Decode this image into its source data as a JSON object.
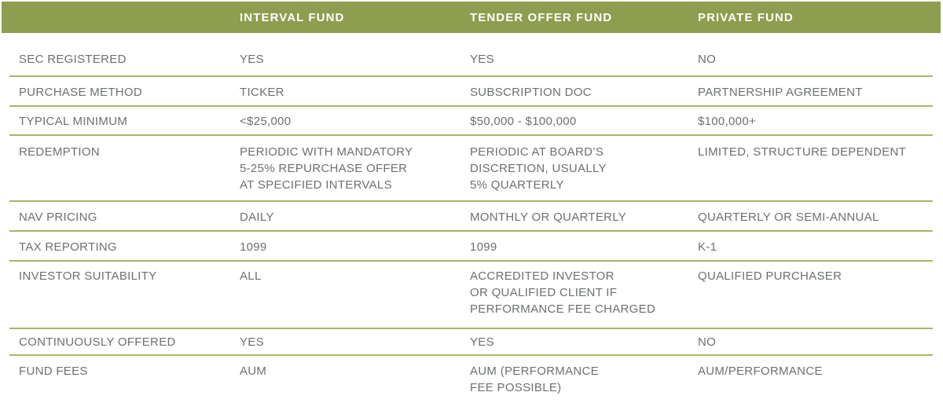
{
  "colors": {
    "header_bg": "#8E9D4F",
    "divider": "#A9B56B",
    "body_text": "#6C7073",
    "header_text": "#FFFFFF"
  },
  "table": {
    "headers": [
      "INTERVAL FUND",
      "TENDER OFFER FUND",
      "PRIVATE FUND"
    ],
    "rows": [
      {
        "label": "SEC REGISTERED",
        "values": [
          "YES",
          "YES",
          "NO"
        ]
      },
      {
        "label": "PURCHASE METHOD",
        "values": [
          "TICKER",
          "SUBSCRIPTION DOC",
          "PARTNERSHIP AGREEMENT"
        ]
      },
      {
        "label": "TYPICAL MINIMUM",
        "values": [
          "<$25,000",
          "$50,000 - $100,000",
          "$100,000+"
        ]
      },
      {
        "label": "REDEMPTION",
        "values": [
          [
            "PERIODIC WITH MANDATORY",
            "5-25% REPURCHASE OFFER",
            "AT SPECIFIED INTERVALS"
          ],
          [
            "PERIODIC AT BOARD’S",
            "DISCRETION, USUALLY",
            "5% QUARTERLY"
          ],
          "LIMITED, STRUCTURE DEPENDENT"
        ]
      },
      {
        "label": "NAV PRICING",
        "values": [
          "DAILY",
          "MONTHLY OR QUARTERLY",
          "QUARTERLY OR SEMI-ANNUAL"
        ]
      },
      {
        "label": "TAX REPORTING",
        "values": [
          "1099",
          "1099",
          "K-1"
        ]
      },
      {
        "label": "INVESTOR SUITABILITY",
        "values": [
          "ALL",
          [
            "ACCREDITED INVESTOR",
            "OR QUALIFIED CLIENT IF",
            "PERFORMANCE FEE CHARGED"
          ],
          "QUALIFIED PURCHASER"
        ]
      },
      {
        "label": "CONTINUOUSLY OFFERED",
        "values": [
          "YES",
          "YES",
          "NO"
        ]
      },
      {
        "label": "FUND FEES",
        "values": [
          "AUM",
          [
            "AUM (PERFORMANCE",
            "FEE POSSIBLE)"
          ],
          "AUM/PERFORMANCE"
        ]
      }
    ]
  }
}
